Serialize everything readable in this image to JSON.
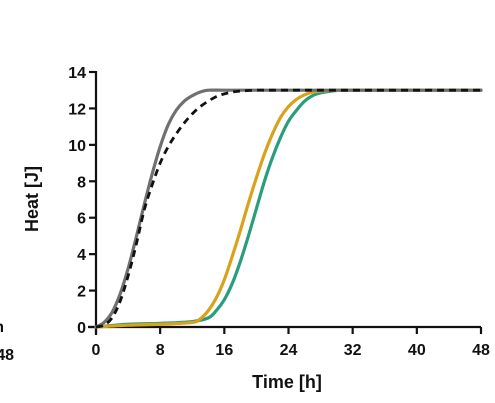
{
  "chart_data": {
    "type": "line",
    "xlabel": "Time [h]",
    "ylabel": "Heat [J]",
    "xlim": [
      0,
      48
    ],
    "ylim": [
      0,
      14
    ],
    "xticks": [
      0,
      8,
      16,
      24,
      32,
      40,
      48
    ],
    "yticks": [
      0,
      2,
      4,
      6,
      8,
      10,
      12,
      14
    ],
    "grid": false,
    "series": [
      {
        "color": "#707070",
        "dash": "solid",
        "x": [
          0,
          1,
          2,
          3,
          4,
          5,
          6,
          7,
          8,
          9,
          10,
          11,
          12,
          13,
          14,
          16,
          20,
          48
        ],
        "y": [
          0.0,
          0.25,
          0.8,
          1.8,
          3.2,
          4.9,
          6.7,
          8.4,
          9.9,
          11.1,
          11.9,
          12.4,
          12.7,
          12.9,
          13.0,
          13.0,
          13.0,
          13.0
        ]
      },
      {
        "color": "#111111",
        "dash": "dashed",
        "x": [
          0,
          1,
          2,
          3,
          4,
          5,
          6,
          7,
          8,
          9,
          10,
          11,
          12,
          13,
          14,
          15,
          16,
          17,
          18,
          20,
          24,
          48
        ],
        "y": [
          0.0,
          0.1,
          0.5,
          1.4,
          2.8,
          4.5,
          6.4,
          7.8,
          9.0,
          9.9,
          10.6,
          11.2,
          11.7,
          12.1,
          12.4,
          12.65,
          12.8,
          12.9,
          12.95,
          13.0,
          13.0,
          13.0
        ]
      },
      {
        "color": "#d9a21b",
        "dash": "solid",
        "x": [
          0,
          4,
          8,
          12,
          13,
          14,
          15,
          16,
          17,
          18,
          19,
          20,
          21,
          22,
          23,
          24,
          25,
          26,
          27,
          28,
          30,
          32,
          48
        ],
        "y": [
          0.0,
          0.1,
          0.15,
          0.25,
          0.45,
          0.9,
          1.6,
          2.6,
          3.9,
          5.3,
          6.8,
          8.2,
          9.5,
          10.6,
          11.5,
          12.1,
          12.5,
          12.75,
          12.9,
          12.95,
          13.0,
          13.0,
          13.0
        ]
      },
      {
        "color": "#2a9d7e",
        "dash": "solid",
        "x": [
          0,
          4,
          8,
          12,
          14,
          15,
          16,
          17,
          18,
          19,
          20,
          21,
          22,
          23,
          24,
          25,
          26,
          27,
          28,
          29,
          30,
          32,
          48
        ],
        "y": [
          0.0,
          0.15,
          0.2,
          0.3,
          0.5,
          0.9,
          1.5,
          2.4,
          3.6,
          5.0,
          6.5,
          8.0,
          9.3,
          10.4,
          11.3,
          11.9,
          12.4,
          12.7,
          12.85,
          12.93,
          12.98,
          13.0,
          13.0
        ]
      }
    ]
  },
  "left_fragment": {
    "tick_top": "n",
    "tick_bottom": "48"
  }
}
